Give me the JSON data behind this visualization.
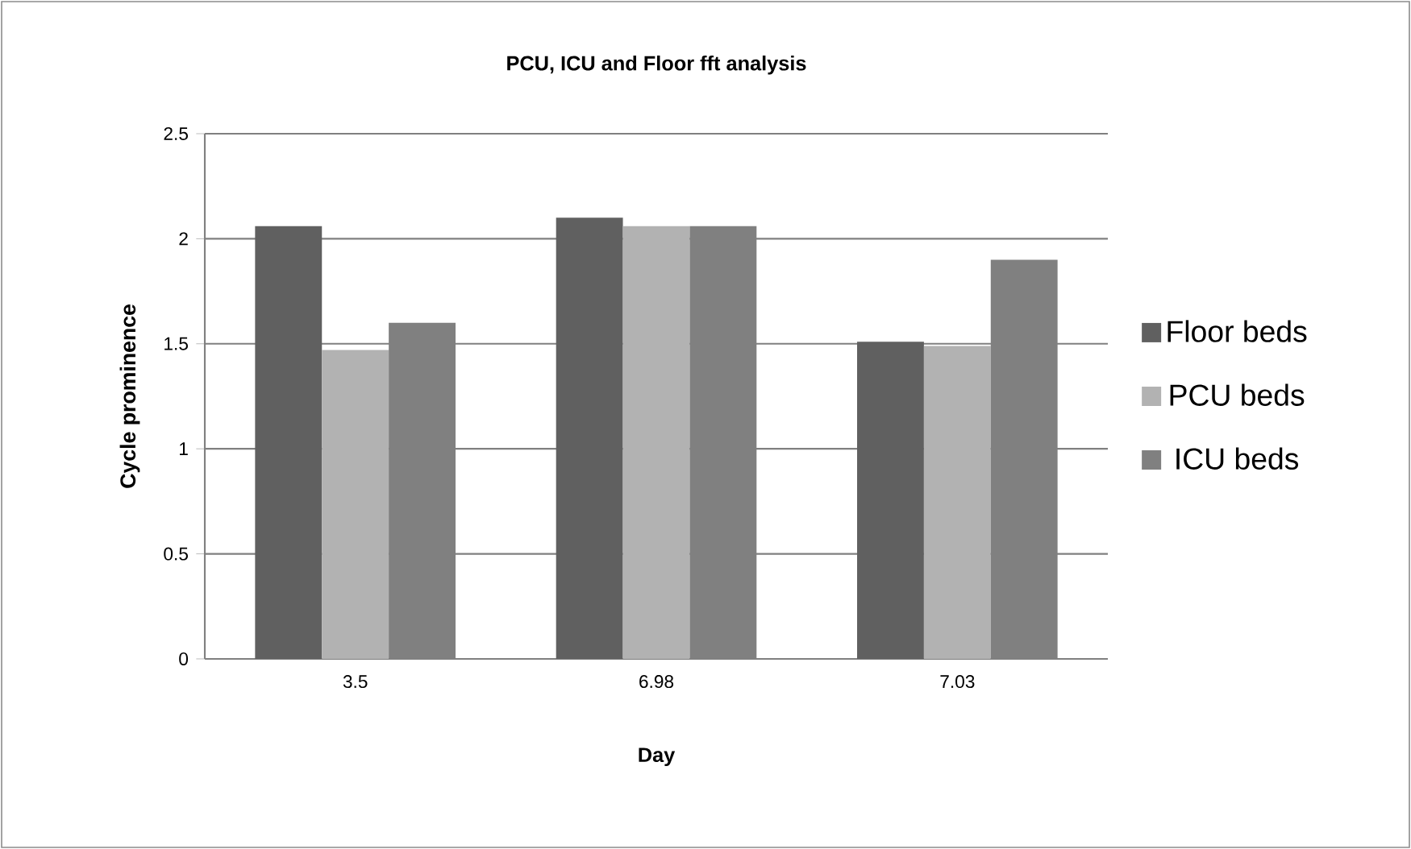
{
  "chart_data": {
    "type": "bar",
    "title": "PCU, ICU and Floor fft analysis",
    "xlabel": "Day",
    "ylabel": "Cycle prominence",
    "categories": [
      "3.5",
      "6.98",
      "7.03"
    ],
    "series": [
      {
        "name": "Floor beds",
        "color": "#606060",
        "values": [
          2.06,
          2.1,
          1.51
        ]
      },
      {
        "name": "PCU beds",
        "color": "#b2b2b2",
        "values": [
          1.47,
          2.06,
          1.49
        ]
      },
      {
        "name": "ICU beds",
        "color": "#808080",
        "values": [
          1.6,
          2.06,
          1.9
        ]
      }
    ],
    "ylim": [
      0,
      2.5
    ],
    "yticks": [
      0,
      0.5,
      1,
      1.5,
      2,
      2.5
    ],
    "grid": "y",
    "legend": "right"
  }
}
